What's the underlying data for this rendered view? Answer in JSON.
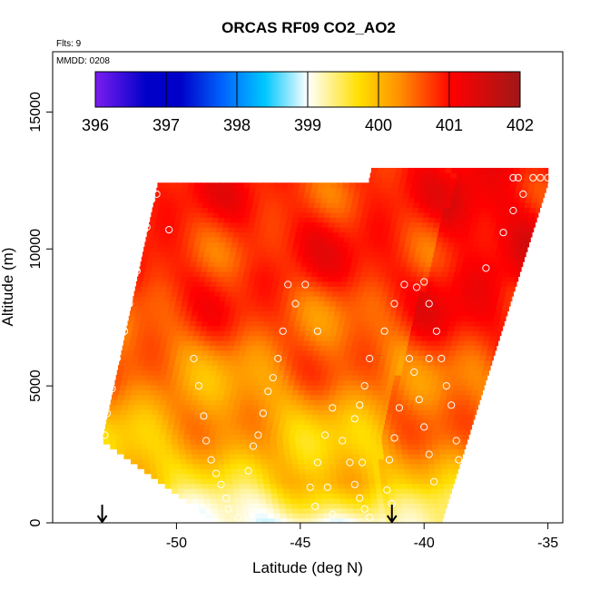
{
  "chart_data": {
    "type": "heatmap",
    "title": "ORCAS RF09 CO2_AO2",
    "annotation_flights": "Flts: 9",
    "annotation_date": "MMDD: 0208",
    "xlabel": "Latitude (deg N)",
    "ylabel": "Altitude (m)",
    "xlim": [
      -55,
      -34.4
    ],
    "ylim": [
      0,
      17200
    ],
    "xticks": [
      -50,
      -45,
      -40,
      -35
    ],
    "xtick_labels": [
      "-50",
      "-45",
      "-40",
      "-35"
    ],
    "yticks": [
      0,
      5000,
      10000,
      15000
    ],
    "ytick_labels": [
      "0",
      "5000",
      "10000",
      "15000"
    ],
    "colorbar": {
      "min": 396,
      "max": 402,
      "ticks": [
        396,
        397,
        398,
        399,
        400,
        401,
        402
      ],
      "tick_labels": [
        "396",
        "397",
        "398",
        "399",
        "400",
        "401",
        "402"
      ],
      "colors": [
        "#7a1ef0",
        "#0000c8",
        "#0064ff",
        "#00c8ff",
        "#ffffff",
        "#ffe000",
        "#ff8c00",
        "#ff0000",
        "#a01818"
      ]
    },
    "arrow_markers_lat": [
      -53,
      -41.3
    ],
    "sample_points": [
      {
        "lat": -50.8,
        "alt": 12000
      },
      {
        "lat": -51.0,
        "alt": 11800
      },
      {
        "lat": -51.2,
        "alt": 10800
      },
      {
        "lat": -50.3,
        "alt": 10700
      },
      {
        "lat": -51.6,
        "alt": 9200
      },
      {
        "lat": -51.9,
        "alt": 8000
      },
      {
        "lat": -52.1,
        "alt": 7000
      },
      {
        "lat": -52.4,
        "alt": 6000
      },
      {
        "lat": -52.6,
        "alt": 4900
      },
      {
        "lat": -52.8,
        "alt": 4000
      },
      {
        "lat": -52.9,
        "alt": 3200
      },
      {
        "lat": -49.3,
        "alt": 6000
      },
      {
        "lat": -49.1,
        "alt": 5000
      },
      {
        "lat": -48.9,
        "alt": 3900
      },
      {
        "lat": -48.8,
        "alt": 3000
      },
      {
        "lat": -48.6,
        "alt": 2300
      },
      {
        "lat": -48.4,
        "alt": 1800
      },
      {
        "lat": -48.2,
        "alt": 1400
      },
      {
        "lat": -48.0,
        "alt": 900
      },
      {
        "lat": -47.9,
        "alt": 500
      },
      {
        "lat": -47.5,
        "alt": 200
      },
      {
        "lat": -47.1,
        "alt": 1900
      },
      {
        "lat": -46.9,
        "alt": 2800
      },
      {
        "lat": -46.7,
        "alt": 3200
      },
      {
        "lat": -46.5,
        "alt": 4000
      },
      {
        "lat": -46.3,
        "alt": 4800
      },
      {
        "lat": -46.1,
        "alt": 5300
      },
      {
        "lat": -45.9,
        "alt": 6000
      },
      {
        "lat": -45.7,
        "alt": 7000
      },
      {
        "lat": -45.2,
        "alt": 8000
      },
      {
        "lat": -44.8,
        "alt": 8700
      },
      {
        "lat": -45.5,
        "alt": 8700
      },
      {
        "lat": -44.3,
        "alt": 7000
      },
      {
        "lat": -43.3,
        "alt": 3000
      },
      {
        "lat": -43.0,
        "alt": 2200
      },
      {
        "lat": -42.8,
        "alt": 1400
      },
      {
        "lat": -42.6,
        "alt": 900
      },
      {
        "lat": -42.4,
        "alt": 500
      },
      {
        "lat": -42.2,
        "alt": 200
      },
      {
        "lat": -42.5,
        "alt": 2200
      },
      {
        "lat": -42.8,
        "alt": 3800
      },
      {
        "lat": -42.6,
        "alt": 4300
      },
      {
        "lat": -42.4,
        "alt": 5000
      },
      {
        "lat": -42.2,
        "alt": 6000
      },
      {
        "lat": -41.6,
        "alt": 7000
      },
      {
        "lat": -41.2,
        "alt": 8000
      },
      {
        "lat": -40.8,
        "alt": 8700
      },
      {
        "lat": -40.3,
        "alt": 8600
      },
      {
        "lat": -40.0,
        "alt": 8800
      },
      {
        "lat": -39.8,
        "alt": 8000
      },
      {
        "lat": -39.5,
        "alt": 7000
      },
      {
        "lat": -39.3,
        "alt": 6000
      },
      {
        "lat": -39.1,
        "alt": 5000
      },
      {
        "lat": -38.9,
        "alt": 4300
      },
      {
        "lat": -38.7,
        "alt": 3000
      },
      {
        "lat": -38.6,
        "alt": 2300
      },
      {
        "lat": -38.5,
        "alt": 1500
      },
      {
        "lat": -38.4,
        "alt": 900
      },
      {
        "lat": -38.3,
        "alt": 500
      },
      {
        "lat": -39.6,
        "alt": 1500
      },
      {
        "lat": -39.8,
        "alt": 2500
      },
      {
        "lat": -40.0,
        "alt": 3500
      },
      {
        "lat": -40.2,
        "alt": 4500
      },
      {
        "lat": -40.4,
        "alt": 5500
      },
      {
        "lat": -40.6,
        "alt": 6000
      },
      {
        "lat": -39.8,
        "alt": 6000
      },
      {
        "lat": -37.5,
        "alt": 9300
      },
      {
        "lat": -36.8,
        "alt": 10600
      },
      {
        "lat": -36.4,
        "alt": 11400
      },
      {
        "lat": -36.0,
        "alt": 12000
      },
      {
        "lat": -35.6,
        "alt": 12600
      },
      {
        "lat": -35.3,
        "alt": 12600
      },
      {
        "lat": -35.0,
        "alt": 12600
      },
      {
        "lat": -36.2,
        "alt": 12600
      },
      {
        "lat": -36.4,
        "alt": 12600
      },
      {
        "lat": -41.0,
        "alt": 4200
      },
      {
        "lat": -41.2,
        "alt": 3100
      },
      {
        "lat": -41.4,
        "alt": 2300
      },
      {
        "lat": -41.5,
        "alt": 1200
      },
      {
        "lat": -41.3,
        "alt": 700
      },
      {
        "lat": -43.7,
        "alt": 4200
      },
      {
        "lat": -44.0,
        "alt": 3200
      },
      {
        "lat": -44.3,
        "alt": 2200
      },
      {
        "lat": -44.6,
        "alt": 1300
      },
      {
        "lat": -44.4,
        "alt": 600
      },
      {
        "lat": -43.9,
        "alt": 1300
      },
      {
        "lat": -43.7,
        "alt": 300
      }
    ]
  }
}
